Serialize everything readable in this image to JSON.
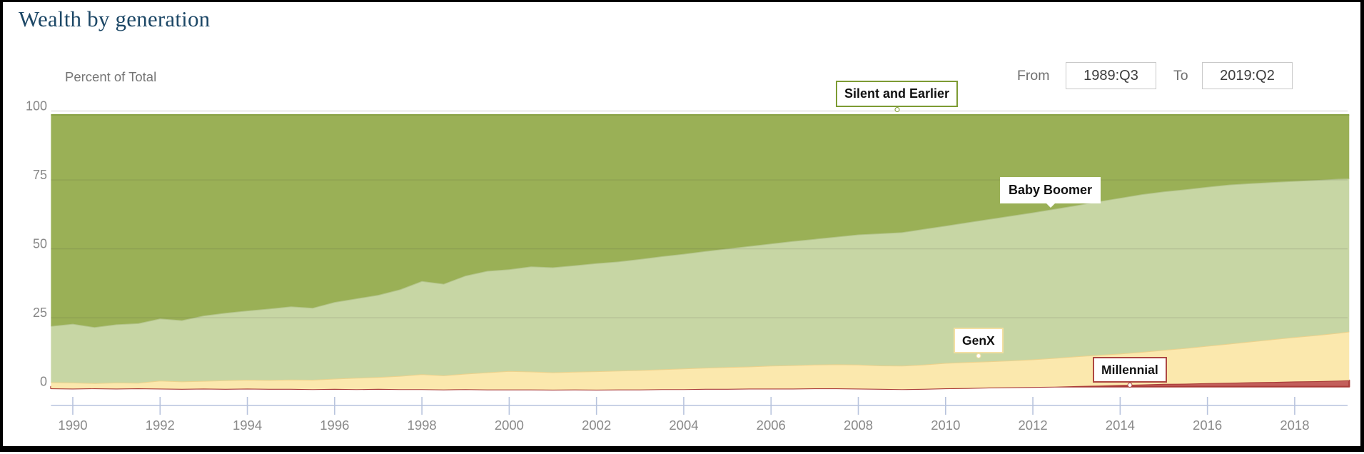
{
  "header": {
    "title": "Wealth by generation"
  },
  "controls": {
    "from_label": "From",
    "from_value": "1989:Q3",
    "to_label": "To",
    "to_value": "2019:Q2"
  },
  "chart_data": {
    "type": "area",
    "stacked": true,
    "title": "Wealth by generation",
    "xlabel": "",
    "ylabel": "Percent of Total",
    "x_range": [
      1989.5,
      2019.25
    ],
    "ylim": [
      0,
      100
    ],
    "y_ticks": [
      0,
      25,
      50,
      75,
      100
    ],
    "x_ticks": [
      1990,
      1992,
      1994,
      1996,
      1998,
      2000,
      2002,
      2004,
      2006,
      2008,
      2010,
      2012,
      2014,
      2016,
      2018
    ],
    "grid": true,
    "legend_position": "annotations-on-chart",
    "x": [
      1989.5,
      1990,
      1990.5,
      1991,
      1991.5,
      1992,
      1992.5,
      1993,
      1993.5,
      1994,
      1994.5,
      1995,
      1995.5,
      1996,
      1996.5,
      1997,
      1997.5,
      1998,
      1998.5,
      1999,
      1999.5,
      2000,
      2000.5,
      2001,
      2001.5,
      2002,
      2002.5,
      2003,
      2003.5,
      2004,
      2004.5,
      2005,
      2005.5,
      2006,
      2006.5,
      2007,
      2007.5,
      2008,
      2008.5,
      2009,
      2009.5,
      2010,
      2010.5,
      2011,
      2011.5,
      2012,
      2012.5,
      2013,
      2013.5,
      2014,
      2014.5,
      2015,
      2015.5,
      2016,
      2016.5,
      2017,
      2017.5,
      2018,
      2018.5,
      2019,
      2019.25
    ],
    "series": [
      {
        "name": "Millennial",
        "color": "#c35f5b",
        "stroke": "#a93b38",
        "values": [
          -0.6,
          -0.7,
          -0.6,
          -0.7,
          -0.6,
          -0.7,
          -0.8,
          -0.7,
          -0.8,
          -0.7,
          -0.8,
          -0.8,
          -0.9,
          -0.8,
          -0.9,
          -0.8,
          -0.9,
          -0.9,
          -1.0,
          -0.9,
          -1.0,
          -1.0,
          -1.0,
          -1.1,
          -1.0,
          -1.1,
          -1.0,
          -1.0,
          -0.9,
          -0.9,
          -0.8,
          -0.8,
          -0.7,
          -0.7,
          -0.7,
          -0.6,
          -0.6,
          -0.7,
          -0.8,
          -0.9,
          -0.8,
          -0.6,
          -0.5,
          -0.3,
          -0.2,
          -0.1,
          0.0,
          0.2,
          0.4,
          0.6,
          0.8,
          1.0,
          1.1,
          1.3,
          1.4,
          1.6,
          1.7,
          1.9,
          2.0,
          2.2,
          2.3
        ]
      },
      {
        "name": "GenX",
        "color": "#fbe8ad",
        "stroke": "#ecd18b",
        "values": [
          2.2,
          2.2,
          1.9,
          2.2,
          2.0,
          2.9,
          2.7,
          2.8,
          3.1,
          3.2,
          3.2,
          3.4,
          3.4,
          3.7,
          4.1,
          4.3,
          4.8,
          5.4,
          5.1,
          5.6,
          6.2,
          6.7,
          6.5,
          6.3,
          6.4,
          6.7,
          6.8,
          7.0,
          7.2,
          7.5,
          7.7,
          7.9,
          8.0,
          8.3,
          8.5,
          8.6,
          8.7,
          8.7,
          8.5,
          8.5,
          8.8,
          9.2,
          9.4,
          9.5,
          9.7,
          10.0,
          10.4,
          10.8,
          11.1,
          11.4,
          11.8,
          12.3,
          12.9,
          13.5,
          14.2,
          14.8,
          15.5,
          16.1,
          16.7,
          17.3,
          17.7
        ]
      },
      {
        "name": "Baby Boomer",
        "color": "#c7d6a4",
        "stroke": "#b3c48a",
        "values": [
          20.4,
          21.3,
          20.3,
          21.1,
          21.6,
          22.5,
          22.2,
          23.7,
          24.5,
          25.1,
          25.9,
          26.5,
          26.1,
          27.8,
          28.8,
          29.8,
          31.4,
          33.8,
          33.2,
          35.6,
          36.8,
          36.9,
          38.1,
          38.1,
          38.6,
          39.2,
          39.6,
          40.3,
          41.0,
          41.6,
          42.3,
          43.0,
          43.7,
          44.3,
          45.0,
          45.6,
          46.3,
          47.2,
          47.9,
          48.4,
          49.2,
          49.8,
          50.7,
          51.6,
          52.5,
          53.3,
          54.1,
          54.8,
          55.7,
          56.5,
          57.2,
          57.5,
          57.6,
          57.7,
          57.7,
          57.4,
          57.0,
          56.6,
          56.3,
          55.9,
          55.5
        ]
      },
      {
        "name": "Silent and Earlier",
        "color": "#9ab056",
        "stroke": "#87a143",
        "values": [
          76.6,
          75.8,
          77.0,
          76.0,
          75.6,
          73.9,
          74.5,
          72.8,
          71.8,
          71.0,
          70.3,
          69.5,
          70.0,
          67.9,
          66.6,
          65.3,
          63.3,
          60.3,
          61.3,
          58.3,
          56.6,
          56.0,
          55.0,
          55.3,
          54.6,
          53.8,
          53.2,
          52.3,
          51.3,
          50.4,
          49.4,
          48.5,
          47.6,
          46.7,
          45.8,
          45.0,
          44.2,
          43.4,
          43.0,
          42.6,
          41.4,
          40.2,
          39.0,
          37.8,
          36.6,
          35.4,
          34.1,
          32.8,
          31.4,
          30.1,
          28.8,
          27.8,
          27.0,
          26.1,
          25.3,
          24.8,
          24.4,
          24.0,
          23.6,
          23.2,
          23.1
        ]
      }
    ]
  },
  "axis": {
    "line_color": "#b7c3dd",
    "tick_label_color": "#8a8a8a",
    "grid_color": "#cccccc",
    "grid_overlay_color": "rgba(60,60,60,0.14)"
  },
  "annotations": {
    "silent_border": "#7d9b33",
    "boomer_border": "#ffffff",
    "genx_border": "#f3dfa2",
    "millennial_border": "#ad4742"
  }
}
